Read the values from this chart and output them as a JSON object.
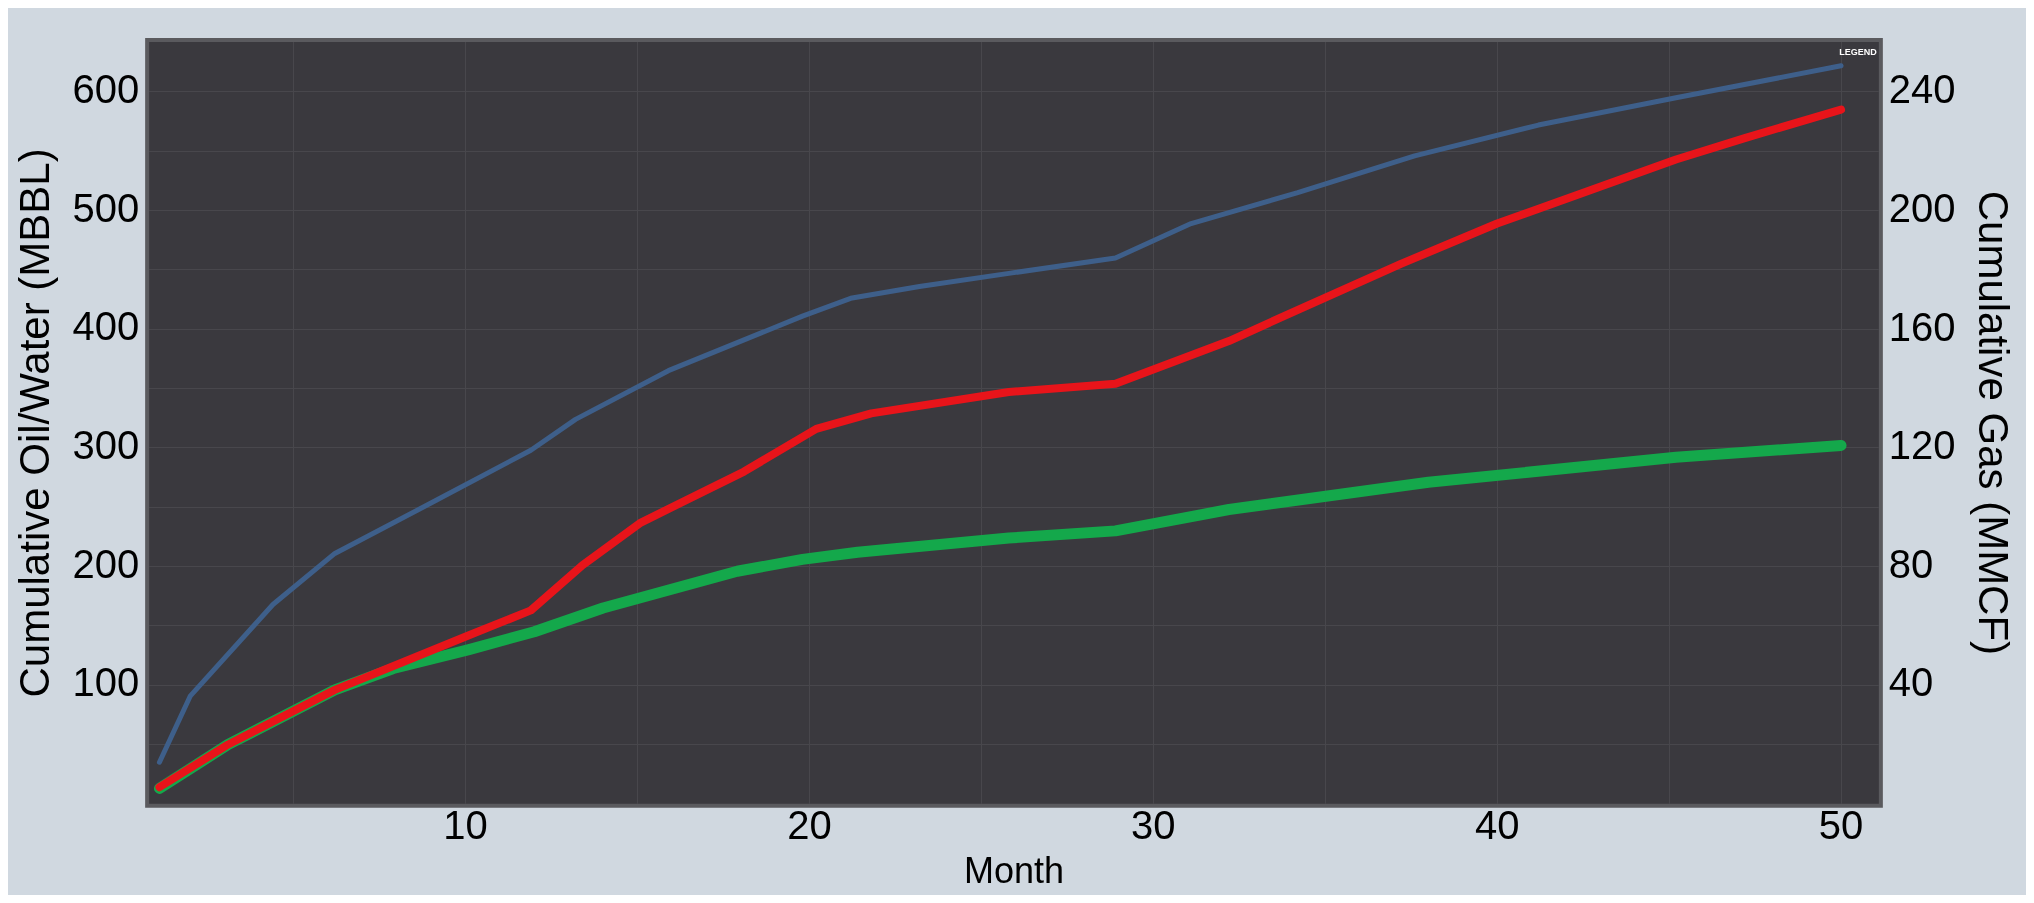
{
  "chart_data": {
    "type": "line",
    "xlabel": "Month",
    "ylabel": "Cumulative Oil/Water (MBBL)",
    "y2label": "Cumulative Gas (MMCF)",
    "annotations": [
      "LEGEND"
    ],
    "xlim": [
      0.8,
      51.1
    ],
    "xticks": [
      {
        "value": 5,
        "label": null
      },
      10,
      {
        "value": 15,
        "label": null
      },
      20,
      {
        "value": 25,
        "label": null
      },
      30,
      {
        "value": 35,
        "label": null
      },
      40,
      {
        "value": 45,
        "label": null
      },
      50
    ],
    "ylim": [
      0,
      642
    ],
    "yticks": [
      {
        "value": 50,
        "label": null
      },
      100,
      {
        "value": 150,
        "label": null
      },
      200,
      {
        "value": 250,
        "label": null
      },
      300,
      {
        "value": 350,
        "label": null
      },
      400,
      {
        "value": 450,
        "label": null
      },
      500,
      {
        "value": 550,
        "label": null
      },
      600
    ],
    "y2lim": [
      0,
      257
    ],
    "y2ticks": [
      40,
      80,
      120,
      160,
      200,
      240
    ],
    "grid": true,
    "legend": false,
    "marker": "none",
    "line_style": "solid",
    "series": [
      {
        "color": "#3e5f8a",
        "x": [
          1.1,
          2,
          4.4,
          6.2,
          8.9,
          11.9,
          13.2,
          15.9,
          19.8,
          21.2,
          23.2,
          25.8,
          28.9,
          31.1,
          34.2,
          37.6,
          41.2,
          45.2,
          50
        ],
        "values": [
          35,
          91,
          168,
          211,
          252,
          298,
          324,
          365,
          411,
          426,
          436,
          447,
          460,
          489,
          515,
          546,
          572,
          595,
          622
        ]
      },
      {
        "color": "#e8141a",
        "x": [
          1.1,
          3.1,
          6.2,
          10.1,
          11.9,
          13.4,
          15.1,
          18.1,
          20.2,
          21.8,
          25.8,
          28.9,
          32.2,
          33.8,
          37.2,
          40,
          45.2,
          47.2,
          50
        ],
        "values": [
          14,
          50,
          96,
          142,
          163,
          201,
          237,
          280,
          316,
          329,
          347,
          354,
          390,
          411,
          455,
          489,
          543,
          561,
          585
        ]
      },
      {
        "color": "#14a84b",
        "x": [
          1.1,
          3.1,
          6.2,
          7.9,
          10.1,
          12,
          14,
          17.9,
          19.8,
          21.4,
          25.8,
          28.9,
          32.2,
          38,
          45.2,
          50
        ],
        "values": [
          13,
          50,
          96,
          114,
          130,
          145,
          165,
          196,
          206,
          212,
          224,
          230,
          248,
          271,
          292,
          302
        ]
      }
    ]
  }
}
